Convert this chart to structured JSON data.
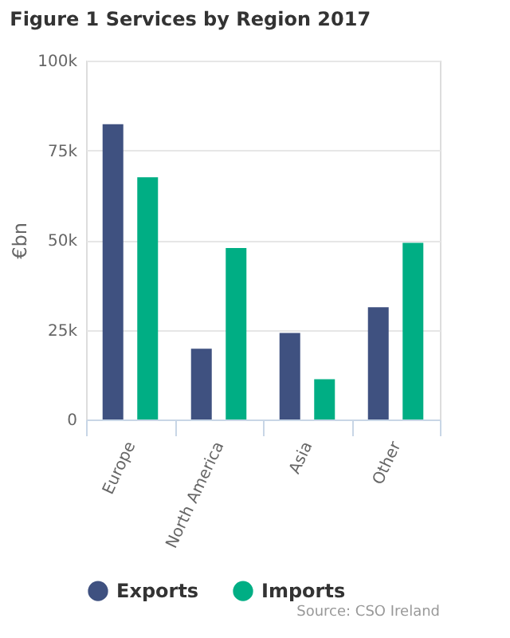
{
  "chart_data": {
    "type": "bar",
    "title": "Figure 1 Services by Region 2017",
    "ylabel": "€bn",
    "categories": [
      "Europe",
      "North America",
      "Asia",
      "Other"
    ],
    "series": [
      {
        "name": "Exports",
        "color": "#3f5180",
        "values": [
          82.3,
          19.7,
          24.1,
          31.3
        ]
      },
      {
        "name": "Imports",
        "color": "#00ae84",
        "values": [
          67.5,
          47.8,
          11.2,
          49.2
        ]
      }
    ],
    "ylim": [
      0,
      100
    ],
    "yticks": [
      0,
      {
        "value": 25,
        "label": "25k"
      },
      {
        "value": 50,
        "label": "50k"
      },
      {
        "value": 75,
        "label": "75k"
      },
      {
        "value": 100,
        "label": "100k"
      }
    ],
    "grid": "y",
    "legend": "bottom",
    "annotations": [
      "Source: CSO Ireland"
    ]
  }
}
